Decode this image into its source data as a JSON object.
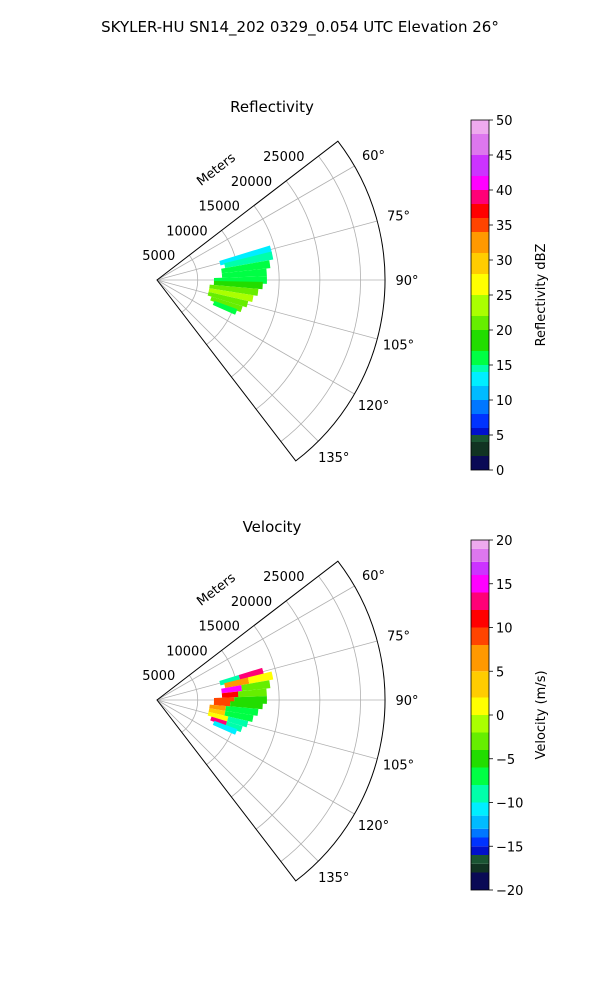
{
  "figure": {
    "title": "SKYLER-HU  SN14_202  0329_0.054 UTC Elevation 26°"
  },
  "chart_data": [
    {
      "type": "polar-sector",
      "title": "Reflectivity",
      "range_label": "Meters",
      "theta_range_deg": [
        52.5,
        142.5
      ],
      "r_max": 28000,
      "r_ticks": [
        5000,
        10000,
        15000,
        20000,
        25000
      ],
      "r_tick_labels": [
        "5000",
        "10000",
        "15000",
        "20000",
        "25000"
      ],
      "theta_ticks": [
        60,
        75,
        90,
        105,
        120,
        135
      ],
      "theta_tick_labels": [
        "60°",
        "75°",
        "90°",
        "105°",
        "120°",
        "135°"
      ],
      "grid": true,
      "colorbar": {
        "label": "Reflectivity dBZ",
        "min": 0,
        "max": 50,
        "ticks": [
          0,
          5,
          10,
          15,
          20,
          25,
          30,
          35,
          40,
          45,
          50
        ],
        "tick_labels": [
          "0",
          "5",
          "10",
          "15",
          "20",
          "25",
          "30",
          "35",
          "40",
          "45",
          "50"
        ]
      },
      "echoes": [
        {
          "az": 75,
          "r_min": 8000,
          "r_max": 14500,
          "value": 12
        },
        {
          "az": 78,
          "r_min": 8500,
          "r_max": 14500,
          "value": 14
        },
        {
          "az": 82,
          "r_min": 8000,
          "r_max": 14000,
          "value": 15
        },
        {
          "az": 86,
          "r_min": 8000,
          "r_max": 13500,
          "value": 15
        },
        {
          "az": 90,
          "r_min": 7000,
          "r_max": 13500,
          "value": 16
        },
        {
          "az": 93,
          "r_min": 7000,
          "r_max": 13000,
          "value": 19
        },
        {
          "az": 97,
          "r_min": 6500,
          "r_max": 12500,
          "value": 21
        },
        {
          "az": 101,
          "r_min": 6500,
          "r_max": 12000,
          "value": 22
        },
        {
          "az": 105,
          "r_min": 6500,
          "r_max": 11500,
          "value": 21
        },
        {
          "az": 109,
          "r_min": 7000,
          "r_max": 11000,
          "value": 20
        },
        {
          "az": 112,
          "r_min": 7500,
          "r_max": 10500,
          "value": 16
        }
      ]
    },
    {
      "type": "polar-sector",
      "title": "Velocity",
      "range_label": "Meters",
      "theta_range_deg": [
        52.5,
        142.5
      ],
      "r_max": 28000,
      "r_ticks": [
        5000,
        10000,
        15000,
        20000,
        25000
      ],
      "r_tick_labels": [
        "5000",
        "10000",
        "15000",
        "20000",
        "25000"
      ],
      "theta_ticks": [
        60,
        75,
        90,
        105,
        120,
        135
      ],
      "theta_tick_labels": [
        "60°",
        "75°",
        "90°",
        "105°",
        "120°",
        "135°"
      ],
      "grid": true,
      "colorbar": {
        "label": "Velocity (m/s)",
        "min": -20,
        "max": 20,
        "ticks": [
          -20,
          -15,
          -10,
          -5,
          0,
          5,
          10,
          15,
          20
        ],
        "tick_labels": [
          "−20",
          "−15",
          "−10",
          "−5",
          "0",
          "5",
          "10",
          "15",
          "20"
        ]
      },
      "echoes": [
        {
          "az": 75,
          "r_min": 8000,
          "r_max": 10500,
          "value": -9
        },
        {
          "az": 75,
          "r_min": 10500,
          "r_max": 13500,
          "value": 12
        },
        {
          "az": 78,
          "r_min": 8500,
          "r_max": 11500,
          "value": 5
        },
        {
          "az": 78,
          "r_min": 11500,
          "r_max": 14500,
          "value": 0
        },
        {
          "az": 82,
          "r_min": 8000,
          "r_max": 10500,
          "value": 14
        },
        {
          "az": 82,
          "r_min": 10500,
          "r_max": 14000,
          "value": -3
        },
        {
          "az": 86,
          "r_min": 8000,
          "r_max": 10000,
          "value": 10
        },
        {
          "az": 86,
          "r_min": 10000,
          "r_max": 13500,
          "value": -4
        },
        {
          "az": 90,
          "r_min": 7000,
          "r_max": 9500,
          "value": 8
        },
        {
          "az": 90,
          "r_min": 9500,
          "r_max": 13500,
          "value": -5
        },
        {
          "az": 93,
          "r_min": 7000,
          "r_max": 9000,
          "value": 9
        },
        {
          "az": 93,
          "r_min": 9000,
          "r_max": 13000,
          "value": -6
        },
        {
          "az": 97,
          "r_min": 6500,
          "r_max": 8500,
          "value": 6
        },
        {
          "az": 97,
          "r_min": 8500,
          "r_max": 12500,
          "value": -7
        },
        {
          "az": 101,
          "r_min": 6500,
          "r_max": 8500,
          "value": 3
        },
        {
          "az": 101,
          "r_min": 8500,
          "r_max": 12000,
          "value": -8
        },
        {
          "az": 105,
          "r_min": 6500,
          "r_max": 9000,
          "value": 1
        },
        {
          "az": 105,
          "r_min": 9000,
          "r_max": 11500,
          "value": -10
        },
        {
          "az": 109,
          "r_min": 7000,
          "r_max": 9000,
          "value": 12
        },
        {
          "az": 109,
          "r_min": 9000,
          "r_max": 11000,
          "value": -9
        },
        {
          "az": 112,
          "r_min": 7500,
          "r_max": 10500,
          "value": -11
        }
      ]
    }
  ]
}
